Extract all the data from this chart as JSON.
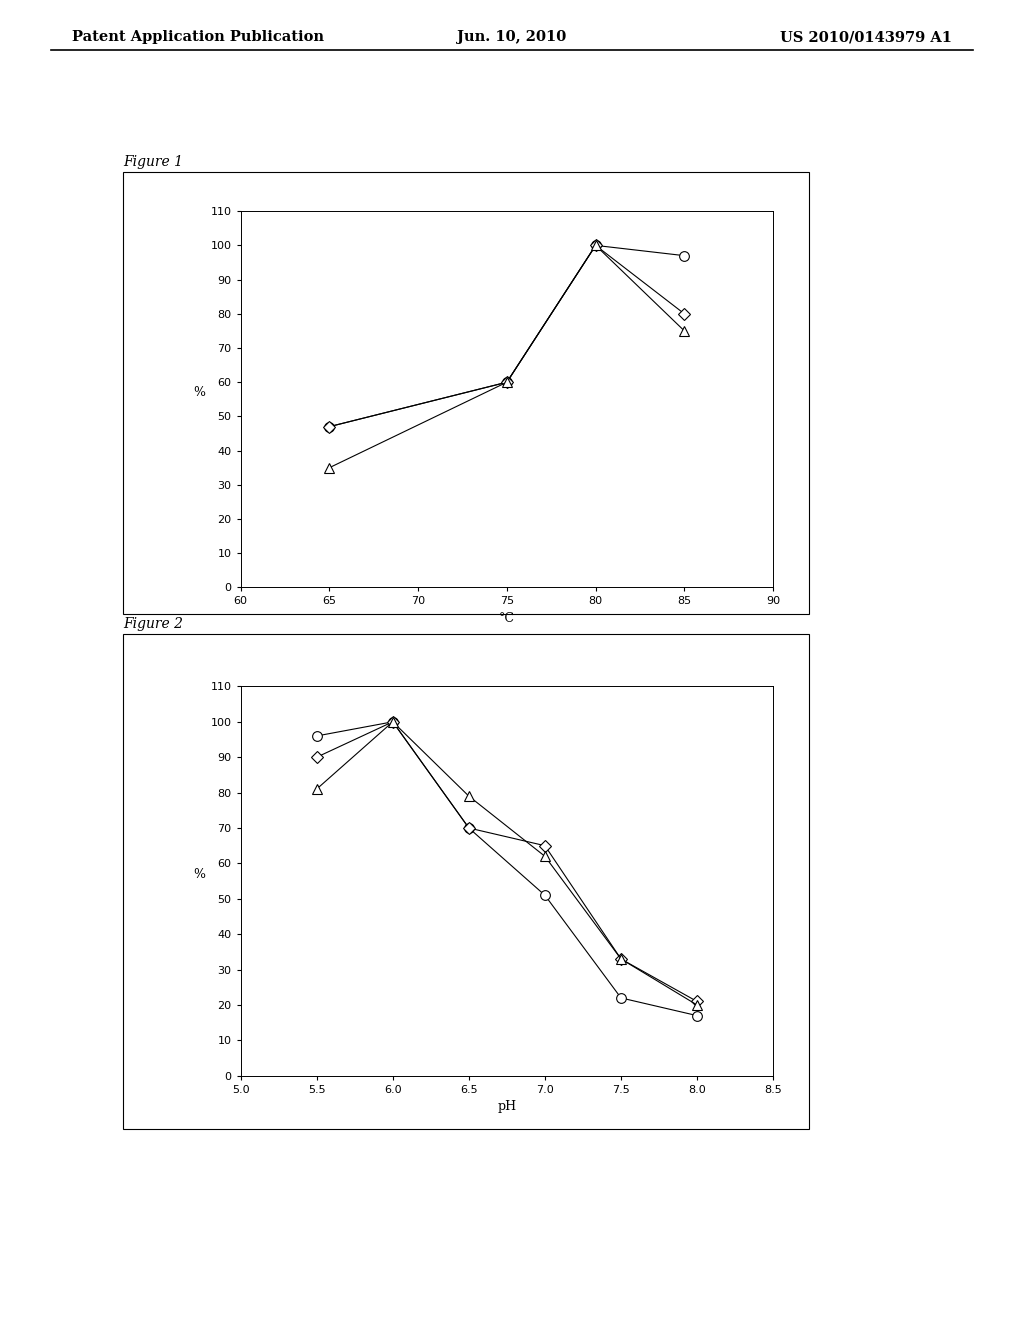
{
  "page_header_left": "Patent Application Publication",
  "page_header_center": "Jun. 10, 2010",
  "page_header_right": "US 2010/0143979 A1",
  "fig1_title": "Figure 1",
  "fig2_title": "Figure 2",
  "fig1": {
    "xlabel": "°C",
    "ylabel": "%",
    "xlim": [
      60,
      90
    ],
    "ylim": [
      0,
      110
    ],
    "xticks": [
      60,
      65,
      70,
      75,
      80,
      85,
      90
    ],
    "yticks": [
      0,
      10,
      20,
      30,
      40,
      50,
      60,
      70,
      80,
      90,
      100,
      110
    ],
    "series": [
      {
        "x": [
          65,
          75,
          80,
          85
        ],
        "y": [
          47,
          60,
          100,
          97
        ],
        "marker": "o",
        "markersize": 7
      },
      {
        "x": [
          65,
          75,
          80,
          85
        ],
        "y": [
          47,
          60,
          100,
          80
        ],
        "marker": "D",
        "markersize": 6
      },
      {
        "x": [
          65,
          75,
          80,
          85
        ],
        "y": [
          35,
          60,
          100,
          75
        ],
        "marker": "^",
        "markersize": 7
      }
    ]
  },
  "fig2": {
    "xlabel": "pH",
    "ylabel": "%",
    "xlim": [
      5.0,
      8.5
    ],
    "ylim": [
      0,
      110
    ],
    "xticks": [
      5.0,
      5.5,
      6.0,
      6.5,
      7.0,
      7.5,
      8.0,
      8.5
    ],
    "yticks": [
      0,
      10,
      20,
      30,
      40,
      50,
      60,
      70,
      80,
      90,
      100,
      110
    ],
    "series": [
      {
        "x": [
          5.5,
          6.0,
          6.5,
          7.0,
          7.5,
          8.0
        ],
        "y": [
          96,
          100,
          70,
          51,
          22,
          17
        ],
        "marker": "o",
        "markersize": 7
      },
      {
        "x": [
          5.5,
          6.0,
          6.5,
          7.0,
          7.5,
          8.0
        ],
        "y": [
          90,
          100,
          70,
          65,
          33,
          21
        ],
        "marker": "D",
        "markersize": 6
      },
      {
        "x": [
          5.5,
          6.0,
          6.5,
          7.0,
          7.5,
          8.0
        ],
        "y": [
          81,
          100,
          79,
          62,
          33,
          20
        ],
        "marker": "^",
        "markersize": 7
      }
    ]
  },
  "background_color": "#ffffff",
  "line_color": "#000000"
}
